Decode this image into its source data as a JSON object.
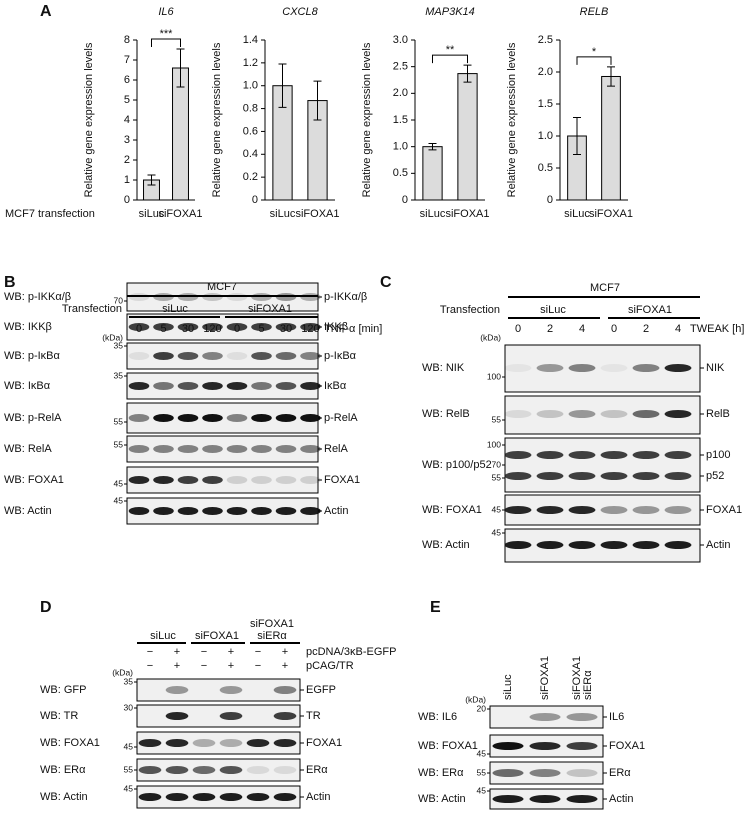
{
  "panel_labels": [
    "A",
    "B",
    "C",
    "D",
    "E"
  ],
  "chart_data": [
    {
      "type": "bar",
      "title": "IL6",
      "ylabel": "Relative gene expression levels",
      "xlabel": "MCF7 transfection",
      "categories": [
        "siLuc",
        "siFOXA1"
      ],
      "values": [
        1.0,
        6.6
      ],
      "errors": [
        0.25,
        0.95
      ],
      "color": "#dcdcdc",
      "ylim": [
        0,
        8
      ],
      "yticks": [
        0,
        1,
        2,
        3,
        4,
        5,
        6,
        7,
        8
      ],
      "annotation": "***"
    },
    {
      "type": "bar",
      "title": "CXCL8",
      "ylabel": "Relative gene expression levels",
      "categories": [
        "siLuc",
        "siFOXA1"
      ],
      "values": [
        1.0,
        0.87
      ],
      "errors": [
        0.19,
        0.17
      ],
      "color": "#dcdcdc",
      "ylim": [
        0,
        1.4
      ],
      "yticks": [
        0,
        0.2,
        0.4,
        0.6,
        0.8,
        {
          "value": 1,
          "label": "1.0"
        },
        1.2,
        1.4
      ]
    },
    {
      "type": "bar",
      "title": "MAP3K14",
      "ylabel": "Relative gene expression levels",
      "categories": [
        "siLuc",
        "siFOXA1"
      ],
      "values": [
        1.0,
        2.37
      ],
      "errors": [
        0.06,
        0.16
      ],
      "color": "#dcdcdc",
      "ylim": [
        0,
        3
      ],
      "yticks": [
        0,
        0.5,
        {
          "value": 1,
          "label": "1.0"
        },
        1.5,
        {
          "value": 2,
          "label": "2.0"
        },
        2.5,
        {
          "value": 3,
          "label": "3.0"
        }
      ],
      "annotation": "**"
    },
    {
      "type": "bar",
      "title": "RELB",
      "ylabel": "Relative gene expression levels",
      "categories": [
        "siLuc",
        "siFOXA1"
      ],
      "values": [
        1.0,
        1.93
      ],
      "errors": [
        0.29,
        0.15
      ],
      "color": "#dcdcdc",
      "ylim": [
        0,
        2.5
      ],
      "yticks": [
        0,
        0.5,
        {
          "value": 1,
          "label": "1.0"
        },
        1.5,
        {
          "value": 2,
          "label": "2.0"
        },
        2.5
      ],
      "annotation": "*"
    }
  ],
  "blots": {
    "B": {
      "cell_line": "MCF7",
      "transfection_label": "Transfection",
      "groups": [
        "siLuc",
        "siFOXA1"
      ],
      "kda_label": "(kDa)",
      "lanes": [
        0,
        5,
        30,
        120,
        0,
        5,
        30,
        120
      ],
      "treatment_label": "TNF-α [min]",
      "rows": [
        {
          "label": "WB: p-IKKα/β",
          "markers": [
            70
          ],
          "targets": [
            "p-IKKα/β"
          ]
        },
        {
          "label": "WB: IKKβ",
          "targets": [
            "IKKβ"
          ]
        },
        {
          "label": "WB: p-IκBα",
          "markers": [
            35
          ],
          "targets": [
            "p-IκBα"
          ]
        },
        {
          "label": "WB: IκBα",
          "markers": [
            35
          ],
          "targets": [
            "IκBα"
          ]
        },
        {
          "label": "WB: p-RelA",
          "markers": [
            55
          ],
          "targets": [
            "p-RelA"
          ]
        },
        {
          "label": "WB: RelA",
          "markers": [
            55
          ],
          "targets": [
            "RelA"
          ]
        },
        {
          "label": "WB: FOXA1",
          "markers": [
            45
          ],
          "targets": [
            "FOXA1"
          ]
        },
        {
          "label": "WB: Actin",
          "markers": [
            45
          ],
          "targets": [
            "Actin"
          ]
        }
      ]
    },
    "C": {
      "cell_line": "MCF7",
      "transfection_label": "Transfection",
      "groups": [
        "siLuc",
        "siFOXA1"
      ],
      "kda_label": "(kDa)",
      "lanes": [
        0,
        2,
        4,
        0,
        2,
        4
      ],
      "treatment_label": "TWEAK [h]",
      "rows": [
        {
          "label": "WB: NIK",
          "markers": [
            100
          ],
          "targets": [
            "NIK"
          ]
        },
        {
          "label": "WB: RelB",
          "markers": [
            55
          ],
          "targets": [
            "RelB"
          ]
        },
        {
          "label": "WB: p100/p52",
          "markers": [
            100,
            70,
            55
          ],
          "targets": [
            "p100",
            "p52"
          ]
        },
        {
          "label": "WB: FOXA1",
          "markers": [
            45
          ],
          "targets": [
            "FOXA1"
          ]
        },
        {
          "label": "WB: Actin",
          "markers": [
            45
          ],
          "targets": [
            "Actin"
          ]
        }
      ]
    },
    "D": {
      "groups": [
        [
          "siLuc"
        ],
        [
          "siFOXA1"
        ],
        [
          "siFOXA1",
          "siERα"
        ]
      ],
      "kda_label": "(kDa)",
      "treatments": [
        {
          "label": "pcDNA/3κB-EGFP",
          "signs": [
            "−",
            "+",
            "−",
            "+",
            "−",
            "+"
          ]
        },
        {
          "label": "pCAG/TR",
          "signs": [
            "−",
            "+",
            "−",
            "+",
            "−",
            "+"
          ]
        }
      ],
      "rows": [
        {
          "label": "WB: GFP",
          "markers": [
            35
          ],
          "targets": [
            "EGFP"
          ]
        },
        {
          "label": "WB: TR",
          "markers": [
            30
          ],
          "targets": [
            "TR"
          ]
        },
        {
          "label": "WB: FOXA1",
          "markers": [
            45
          ],
          "targets": [
            "FOXA1"
          ]
        },
        {
          "label": "WB: ERα",
          "markers": [
            55
          ],
          "targets": [
            "ERα"
          ]
        },
        {
          "label": "WB: Actin",
          "markers": [
            45
          ],
          "targets": [
            "Actin"
          ]
        }
      ]
    },
    "E": {
      "lanes": [
        [
          "siLuc"
        ],
        [
          "siFOXA1"
        ],
        [
          "siFOXA1",
          "siERα"
        ]
      ],
      "kda_label": "(kDa)",
      "rows": [
        {
          "label": "WB: IL6",
          "markers": [
            20
          ],
          "targets": [
            "IL6"
          ]
        },
        {
          "label": "WB: FOXA1",
          "markers": [
            45
          ],
          "targets": [
            "FOXA1"
          ]
        },
        {
          "label": "WB: ERα",
          "markers": [
            55
          ],
          "targets": [
            "ERα"
          ]
        },
        {
          "label": "WB: Actin",
          "markers": [
            45
          ],
          "targets": [
            "Actin"
          ]
        }
      ]
    }
  }
}
